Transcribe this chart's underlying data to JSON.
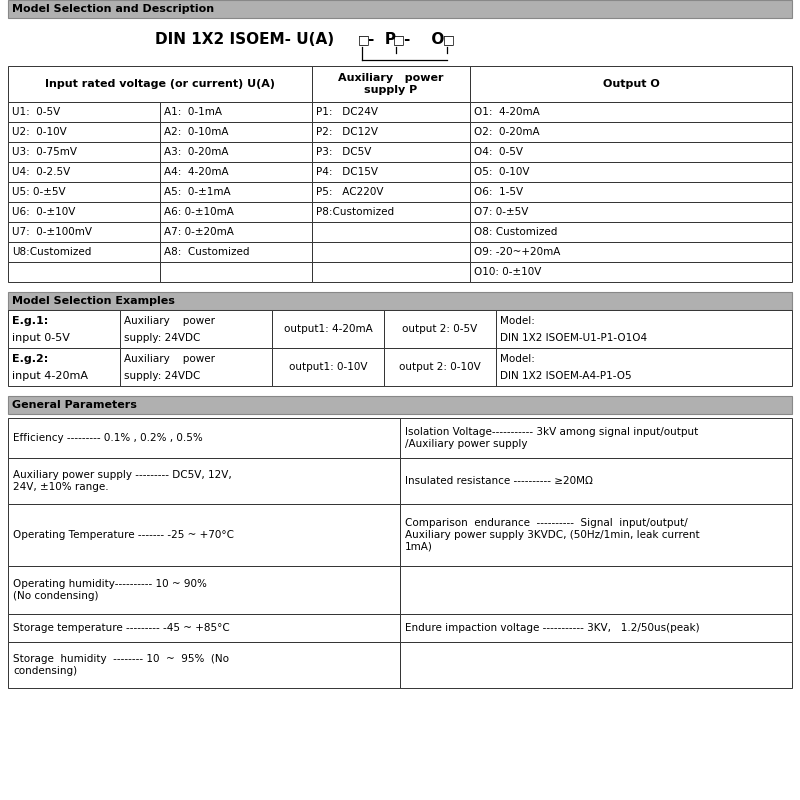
{
  "bg_color": "#ffffff",
  "section1_title": "Model Selection and Description",
  "section2_title": "Model Selection Examples",
  "section3_title": "General Parameters",
  "table1_col1": [
    "U1:  0-5V",
    "U2:  0-10V",
    "U3:  0-75mV",
    "U4:  0-2.5V",
    "U5: 0-±5V",
    "U6:  0-±10V",
    "U7:  0-±100mV",
    "U8:Customized",
    ""
  ],
  "table1_col2": [
    "A1:  0-1mA",
    "A2:  0-10mA",
    "A3:  0-20mA",
    "A4:  4-20mA",
    "A5:  0-±1mA",
    "A6: 0-±10mA",
    "A7: 0-±20mA",
    "A8:  Customized",
    ""
  ],
  "table1_col3": [
    "P1:   DC24V",
    "P2:   DC12V",
    "P3:   DC5V",
    "P4:   DC15V",
    "P5:   AC220V",
    "P8:Customized",
    "",
    "",
    ""
  ],
  "table1_col4": [
    "O1:  4-20mA",
    "O2:  0-20mA",
    "O4:  0-5V",
    "O5:  0-10V",
    "O6:  1-5V",
    "O7: 0-±5V",
    "O8: Customized",
    "O9: -20~+20mA",
    "O10: 0-±10V"
  ],
  "eg1": [
    "E.g.1:",
    "input 0-5V",
    "Auxiliary    power",
    "supply: 24VDC",
    "output1: 4-20mA",
    "output 2: 0-5V",
    "Model:",
    "DIN 1X2 ISOEM-U1-P1-O1O4"
  ],
  "eg2": [
    "E.g.2:",
    "input 4-20mA",
    "Auxiliary    power",
    "supply: 24VDC",
    "output1: 0-10V",
    "output 2: 0-10V",
    "Model:",
    "DIN 1X2 ISOEM-A4-P1-O5"
  ],
  "params_left": [
    "Efficiency --------- 0.1% , 0.2% , 0.5%",
    "Auxiliary power supply --------- DC5V, 12V,\n24V, ±10% range.",
    "Operating Temperature ------- -25 ~ +70°C",
    "Operating humidity---------- 10 ~ 90%\n(No condensing)",
    "Storage temperature --------- -45 ~ +85°C",
    "Storage  humidity  -------- 10  ~  95%  (No\ncondensing)"
  ],
  "params_right": [
    "Isolation Voltage----------- 3kV among signal input/output\n/Auxiliary power supply",
    "Insulated resistance ---------- ≥20MΩ",
    "Comparison  endurance  ----------  Signal  input/output/\nAuxiliary power supply 3KVDC, (50Hz/1min, leak current\n1mA)",
    "",
    "Endure impaction voltage ----------- 3KV,   1.2/50us(peak)",
    ""
  ],
  "gp_row_heights": [
    40,
    46,
    62,
    48,
    28,
    46
  ]
}
